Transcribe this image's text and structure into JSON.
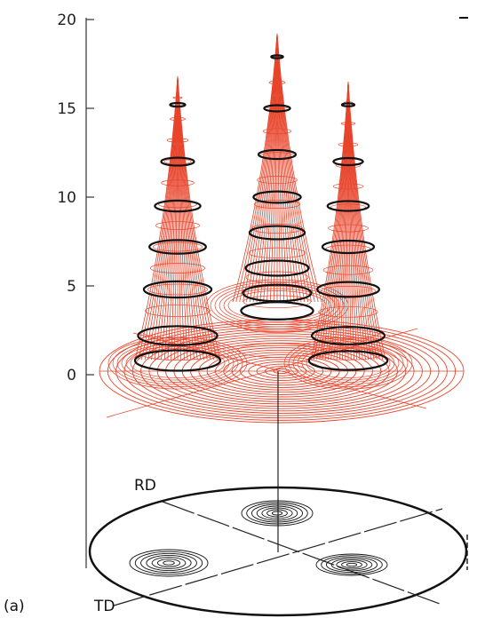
{
  "panel_label": "(a)",
  "axis": {
    "ticks": [
      {
        "value": 0,
        "label": "0"
      },
      {
        "value": 5,
        "label": "5"
      },
      {
        "value": 10,
        "label": "10"
      },
      {
        "value": 15,
        "label": "15"
      },
      {
        "value": 20,
        "label": "20"
      }
    ],
    "range": [
      0,
      20
    ]
  },
  "projection_labels": {
    "rd": "RD",
    "td": "TD"
  },
  "peaks": [
    {
      "name": "left",
      "height": 16.8
    },
    {
      "name": "center",
      "height": 19.2
    },
    {
      "name": "right",
      "height": 16.5
    }
  ],
  "colors": {
    "mesh": "#e8452c",
    "contour": "#111111",
    "axis": "#333333"
  }
}
